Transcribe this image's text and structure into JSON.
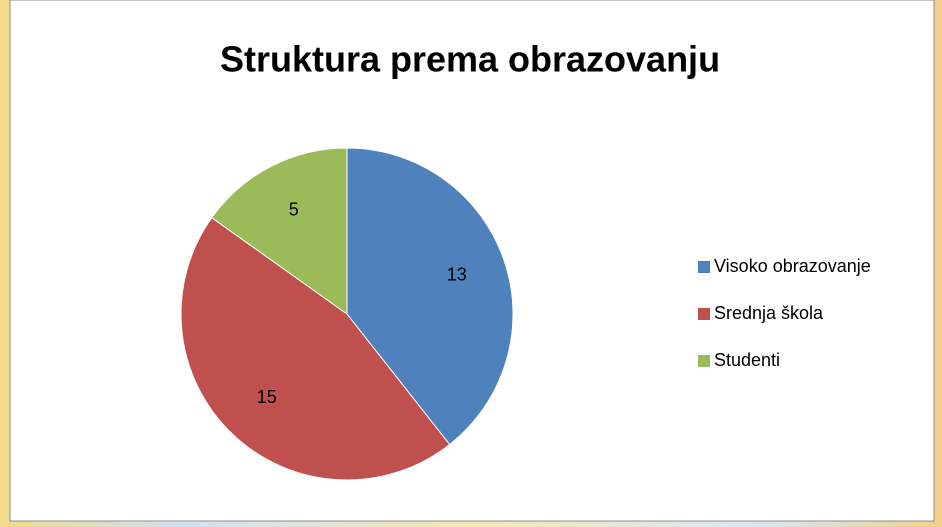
{
  "chart_data": {
    "type": "pie",
    "title": "Struktura prema obrazovanju",
    "categories": [
      "Visoko obrazovanje",
      "Srednja škola",
      "Studenti"
    ],
    "values": [
      13,
      15,
      5
    ],
    "colors": [
      "#4f81bd",
      "#c0504d",
      "#9bbb59"
    ],
    "legend": "right"
  }
}
